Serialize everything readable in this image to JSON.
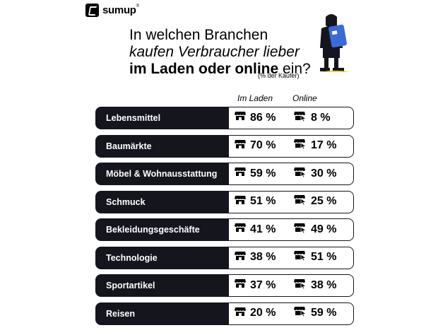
{
  "brand": {
    "name": "sumup",
    "mark": "®"
  },
  "headline": {
    "line1": "In welchen Branchen",
    "line2": "kaufen Verbraucher lieber",
    "line3_bold": "im Laden oder online",
    "line3_rest": " ein?",
    "note": "(% der Käufer)"
  },
  "columns": {
    "in_store": "Im Laden",
    "online": "Online"
  },
  "icons": {
    "in_store": "storefront-icon",
    "online": "cursor-store-icon"
  },
  "chart_data": {
    "type": "table",
    "categories": [
      "Lebensmittel",
      "Baumärkte",
      "Möbel & Wohnausstattung",
      "Schmuck",
      "Bekleidungsgeschäfte",
      "Technologie",
      "Sportartikel",
      "Reisen"
    ],
    "series": [
      {
        "name": "Im Laden",
        "values": [
          86,
          70,
          59,
          51,
          41,
          38,
          37,
          20
        ]
      },
      {
        "name": "Online",
        "values": [
          8,
          17,
          30,
          25,
          49,
          51,
          38,
          59
        ]
      }
    ],
    "unit": "%"
  }
}
